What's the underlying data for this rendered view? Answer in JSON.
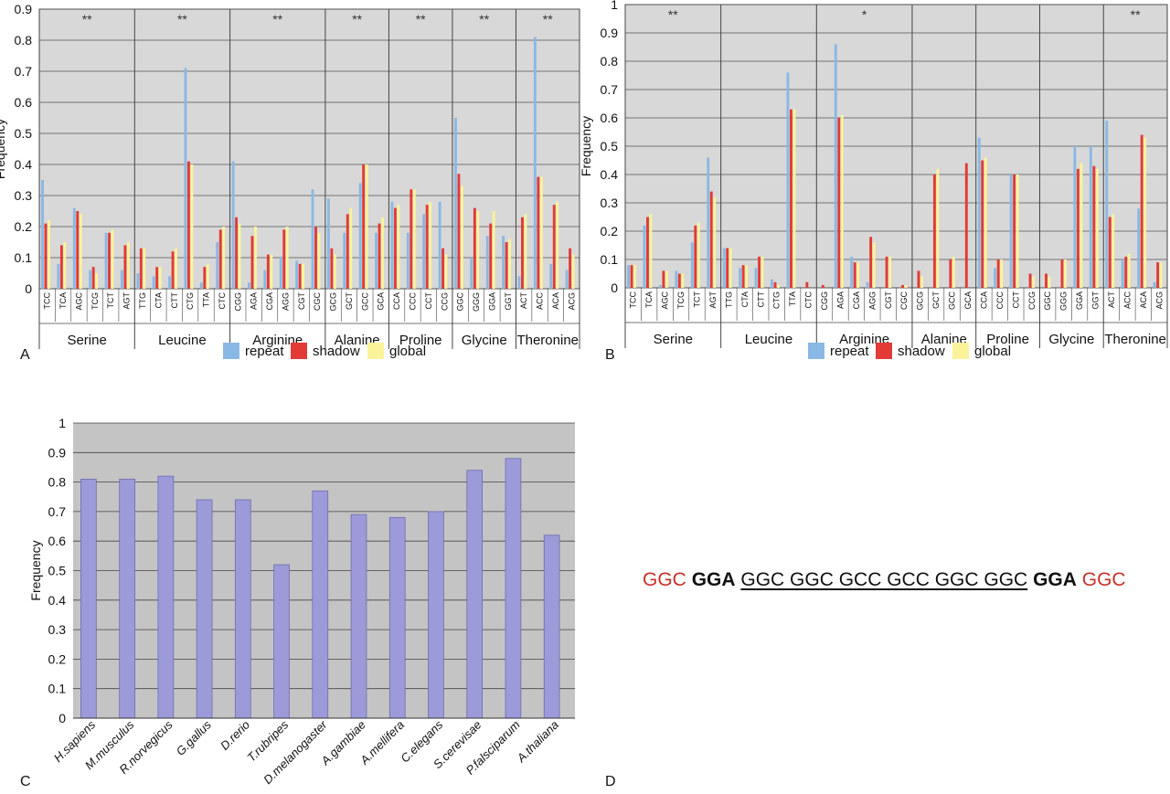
{
  "colors": {
    "repeat": "#8ab8e4",
    "shadow": "#e23a35",
    "global": "#fbf39a",
    "speciesBar": "#9c9ad8",
    "plotBg": "#d8d8d8",
    "plotBgC": "#c4c4c4"
  },
  "legend": {
    "repeat": "repeat",
    "shadow": "shadow",
    "global": "global"
  },
  "panel_labels": {
    "a": "A",
    "b": "B",
    "c": "C",
    "d": "D"
  },
  "sequence": {
    "flank_left": "GGC",
    "bold_left": "GGA",
    "repeat_core": "GGC GGC GCC GCC GGC GGC",
    "bold_right": "GGA",
    "flank_right": "GGC"
  },
  "chart_data": [
    {
      "type": "bar",
      "panel": "A",
      "ylabel": "Frequency",
      "ylim": [
        0,
        0.9
      ],
      "yticks": [
        "0",
        "0.1",
        "0.2",
        "0.3",
        "0.4",
        "0.5",
        "0.6",
        "0.7",
        "0.8",
        "0.9"
      ],
      "series_names": [
        "repeat",
        "shadow",
        "global"
      ],
      "groups": [
        {
          "name": "Serine",
          "sig": "**",
          "codons": [
            "TCC",
            "TCA",
            "AGC",
            "TCG",
            "TCT",
            "AGT"
          ],
          "repeat": [
            0.35,
            0.08,
            0.26,
            0.06,
            0.18,
            0.06
          ],
          "shadow": [
            0.21,
            0.14,
            0.25,
            0.07,
            0.18,
            0.14
          ],
          "global": [
            0.22,
            0.15,
            0.24,
            0.05,
            0.19,
            0.15
          ]
        },
        {
          "name": "Leucine",
          "sig": "**",
          "codons": [
            "TTG",
            "CTA",
            "CTT",
            "CTG",
            "TTA",
            "CTC"
          ],
          "repeat": [
            0.05,
            0.04,
            0.04,
            0.71,
            0.02,
            0.15
          ],
          "shadow": [
            0.13,
            0.07,
            0.12,
            0.41,
            0.07,
            0.19
          ],
          "global": [
            0.13,
            0.07,
            0.13,
            0.4,
            0.08,
            0.2
          ]
        },
        {
          "name": "Arginine",
          "sig": "**",
          "codons": [
            "CGG",
            "AGA",
            "CGA",
            "AGG",
            "CGT",
            "CGC"
          ],
          "repeat": [
            0.41,
            0.02,
            0.06,
            0.1,
            0.09,
            0.32
          ],
          "shadow": [
            0.23,
            0.17,
            0.11,
            0.19,
            0.08,
            0.2
          ],
          "global": [
            0.21,
            0.2,
            0.11,
            0.2,
            0.08,
            0.18
          ]
        },
        {
          "name": "Alanine",
          "sig": "**",
          "codons": [
            "GCG",
            "GCT",
            "GCC",
            "GCA"
          ],
          "repeat": [
            0.29,
            0.18,
            0.34,
            0.18
          ],
          "shadow": [
            0.13,
            0.24,
            0.4,
            0.21
          ],
          "global": [
            0.11,
            0.26,
            0.4,
            0.23
          ]
        },
        {
          "name": "Proline",
          "sig": "**",
          "codons": [
            "CCA",
            "CCC",
            "CCT",
            "CCG"
          ],
          "repeat": [
            0.28,
            0.18,
            0.24,
            0.28
          ],
          "shadow": [
            0.26,
            0.32,
            0.27,
            0.13
          ],
          "global": [
            0.27,
            0.32,
            0.28,
            0.11
          ]
        },
        {
          "name": "Glycine",
          "sig": "**",
          "codons": [
            "GGC",
            "GGG",
            "GGA",
            "GGT"
          ],
          "repeat": [
            0.55,
            0.1,
            0.17,
            0.17
          ],
          "shadow": [
            0.37,
            0.26,
            0.21,
            0.15
          ],
          "global": [
            0.33,
            0.25,
            0.25,
            0.16
          ]
        },
        {
          "name": "Theronine",
          "sig": "**",
          "codons": [
            "ACT",
            "ACC",
            "ACA",
            "ACG"
          ],
          "repeat": [
            0.04,
            0.81,
            0.08,
            0.06
          ],
          "shadow": [
            0.23,
            0.36,
            0.27,
            0.13
          ],
          "global": [
            0.24,
            0.36,
            0.28,
            0.11
          ]
        }
      ]
    },
    {
      "type": "bar",
      "panel": "B",
      "ylabel": "Frequency",
      "ylim": [
        0,
        1
      ],
      "yticks": [
        "0",
        "0.1",
        "0.2",
        "0.3",
        "0.4",
        "0.5",
        "0.6",
        "0.7",
        "0.8",
        "0.9",
        "1"
      ],
      "series_names": [
        "repeat",
        "shadow",
        "global"
      ],
      "groups": [
        {
          "name": "Serine",
          "sig": "**",
          "codons": [
            "TCC",
            "TCA",
            "AGC",
            "TCG",
            "TCT",
            "AGT"
          ],
          "repeat": [
            0.08,
            0.22,
            0.01,
            0.06,
            0.16,
            0.46
          ],
          "shadow": [
            0.08,
            0.25,
            0.06,
            0.05,
            0.22,
            0.34
          ],
          "global": [
            0.08,
            0.26,
            0.06,
            0.05,
            0.23,
            0.32
          ]
        },
        {
          "name": "Leucine",
          "sig": "",
          "codons": [
            "TTG",
            "CTA",
            "CTT",
            "CTG",
            "TTA",
            "CTC"
          ],
          "repeat": [
            0.14,
            0.07,
            0.07,
            0.03,
            0.76,
            0.0
          ],
          "shadow": [
            0.14,
            0.08,
            0.11,
            0.02,
            0.63,
            0.02
          ],
          "global": [
            0.14,
            0.08,
            0.11,
            0.01,
            0.63,
            0.0
          ]
        },
        {
          "name": "Arginine",
          "sig": "*",
          "codons": [
            "CGG",
            "AGA",
            "CGA",
            "AGG",
            "CGT",
            "CGC"
          ],
          "repeat": [
            0.0,
            0.86,
            0.11,
            0.02,
            0.0,
            0.0
          ],
          "shadow": [
            0.01,
            0.6,
            0.09,
            0.18,
            0.11,
            0.01
          ],
          "global": [
            0.0,
            0.61,
            0.09,
            0.16,
            0.11,
            0.01
          ]
        },
        {
          "name": "Alanine",
          "sig": "",
          "codons": [
            "GCG",
            "GCT",
            "GCC",
            "GCA"
          ],
          "repeat": [
            0.0,
            0.0,
            0.0,
            0.0
          ],
          "shadow": [
            0.06,
            0.4,
            0.1,
            0.44
          ],
          "global": [
            0.04,
            0.42,
            0.11,
            0.0
          ]
        },
        {
          "name": "Proline",
          "sig": "",
          "codons": [
            "CCA",
            "CCC",
            "CCT",
            "CCG"
          ],
          "repeat": [
            0.53,
            0.07,
            0.4,
            0.0
          ],
          "shadow": [
            0.45,
            0.1,
            0.4,
            0.05
          ],
          "global": [
            0.46,
            0.1,
            0.4,
            0.04
          ]
        },
        {
          "name": "Glycine",
          "sig": "",
          "codons": [
            "GGC",
            "GGG",
            "GGA",
            "GGT"
          ],
          "repeat": [
            0.0,
            0.0,
            0.5,
            0.5
          ],
          "shadow": [
            0.05,
            0.1,
            0.42,
            0.43
          ],
          "global": [
            0.04,
            0.1,
            0.44,
            0.42
          ]
        },
        {
          "name": "Theronine",
          "sig": "**",
          "codons": [
            "ACT",
            "ACC",
            "ACA",
            "ACG"
          ],
          "repeat": [
            0.59,
            0.1,
            0.28,
            0.02
          ],
          "shadow": [
            0.25,
            0.11,
            0.54,
            0.09
          ],
          "global": [
            0.26,
            0.12,
            0.53,
            0.09
          ]
        }
      ]
    },
    {
      "type": "bar",
      "panel": "C",
      "ylabel": "Frequency",
      "ylim": [
        0,
        1
      ],
      "yticks": [
        "0",
        "0.1",
        "0.2",
        "0.3",
        "0.4",
        "0.5",
        "0.6",
        "0.7",
        "0.8",
        "0.9",
        "1"
      ],
      "categories": [
        "H.sapiens",
        "M.musculus",
        "R.norvegicus",
        "G.gallus",
        "D.rerio",
        "T.rubripes",
        "D.melanogaster",
        "A.gambiae",
        "A.mellifera",
        "C.elegans",
        "S.cerevisae",
        "P.falsciparum",
        "A.thaliana"
      ],
      "values": [
        0.81,
        0.81,
        0.82,
        0.74,
        0.74,
        0.52,
        0.77,
        0.69,
        0.68,
        0.7,
        0.84,
        0.88,
        0.62
      ]
    }
  ]
}
